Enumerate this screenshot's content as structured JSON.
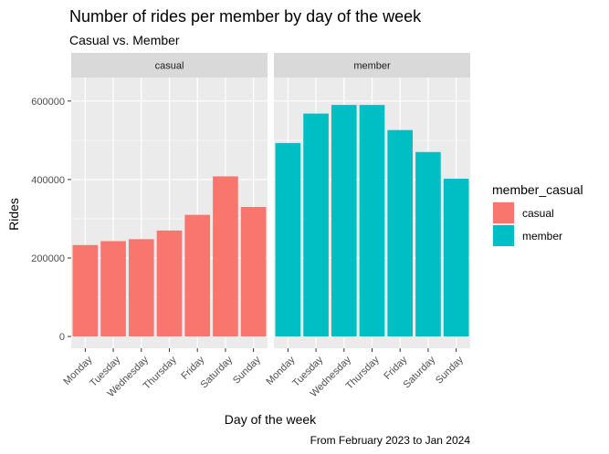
{
  "chart_data": {
    "type": "bar",
    "title": "Number of rides per member by day of the week",
    "subtitle": "Casual vs. Member",
    "caption": "From February 2023 to Jan 2024",
    "xlabel": "Day of the week",
    "ylabel": "Rides",
    "ylim": [
      -30000,
      660000
    ],
    "yticks": [
      0,
      200000,
      400000,
      600000
    ],
    "ytick_labels": [
      "0",
      "200000",
      "400000",
      "600000"
    ],
    "grid": true,
    "facets": [
      "casual",
      "member"
    ],
    "categories": [
      "Monday",
      "Tuesday",
      "Wednesday",
      "Thursday",
      "Friday",
      "Saturday",
      "Sunday"
    ],
    "series": [
      {
        "name": "casual",
        "color": "#F8766D",
        "values": [
          233000,
          243000,
          248000,
          270000,
          310000,
          408000,
          330000
        ]
      },
      {
        "name": "member",
        "color": "#00BFC4",
        "values": [
          493000,
          568000,
          590000,
          590000,
          526000,
          470000,
          402000
        ]
      }
    ],
    "legend": {
      "title": "member_casual",
      "position": "right"
    }
  }
}
